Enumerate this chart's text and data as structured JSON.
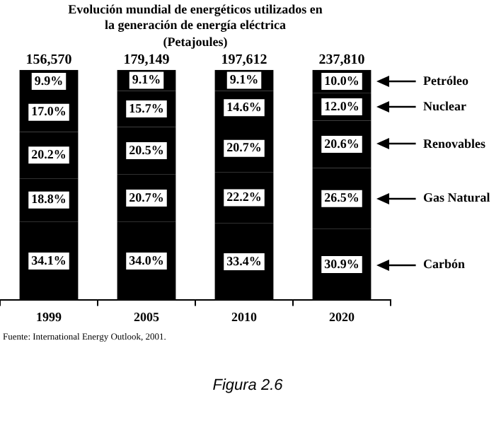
{
  "chart_data": {
    "type": "bar",
    "title": "Evolución mundial de energéticos utilizados en\nla generación de energía eléctrica",
    "subtitle": "(Petajoules)",
    "categories": [
      "1999",
      "2005",
      "2010",
      "2020"
    ],
    "stacked": true,
    "ylim": [
      0,
      100
    ],
    "legend": "right",
    "series": [
      {
        "name": "Carbón",
        "color": "#000000",
        "values": [
          34.1,
          34.0,
          33.4,
          30.9
        ],
        "value_labels": [
          "34.1%",
          "34.0%",
          "33.4%",
          "30.9%"
        ]
      },
      {
        "name": "Gas Natural",
        "color": "#000000",
        "values": [
          18.8,
          20.7,
          22.2,
          26.5
        ],
        "value_labels": [
          "18.8%",
          "20.7%",
          "22.2%",
          "26.5%"
        ]
      },
      {
        "name": "Renovables",
        "color": "#000000",
        "values": [
          20.2,
          20.5,
          20.7,
          20.6
        ],
        "value_labels": [
          "20.2%",
          "20.5%",
          "20.7%",
          "20.6%"
        ]
      },
      {
        "name": "Nuclear",
        "color": "#000000",
        "values": [
          17.0,
          15.7,
          14.6,
          12.0
        ],
        "value_labels": [
          "17.0%",
          "15.7%",
          "14.6%",
          "12.0%"
        ]
      },
      {
        "name": "Petróleo",
        "color": "#000000",
        "values": [
          9.9,
          9.1,
          9.1,
          10.0
        ],
        "value_labels": [
          "9.9%",
          "9.1%",
          "9.1%",
          "10.0%"
        ]
      }
    ],
    "annotations": [
      "Fuente: International Energy Outlook, 2001.",
      "Figura 2.6",
      {
        "text": "156,570",
        "x": "1999",
        "y": 100
      },
      {
        "text": "179,149",
        "x": "2005",
        "y": 100
      },
      {
        "text": "197,612",
        "x": "2010",
        "y": 100
      },
      {
        "text": "237,810",
        "x": "2020",
        "y": 100
      }
    ]
  }
}
